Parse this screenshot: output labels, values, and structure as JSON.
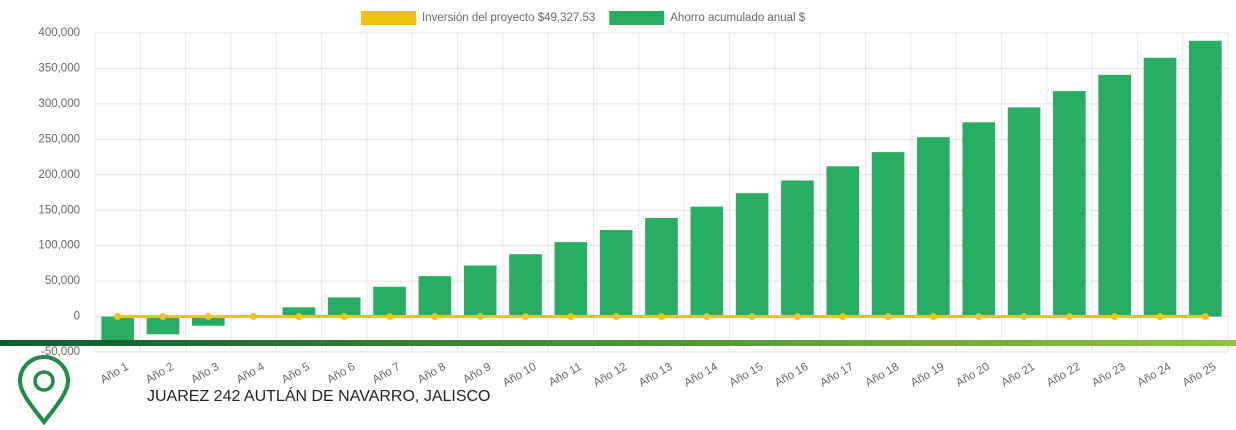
{
  "chart_data": {
    "type": "bar",
    "categories": [
      "Año 1",
      "Año 2",
      "Año 3",
      "Año 4",
      "Año 5",
      "Año 6",
      "Año 7",
      "Año 8",
      "Año 9",
      "Año 10",
      "Año 11",
      "Año 12",
      "Año 13",
      "Año 14",
      "Año 15",
      "Año 16",
      "Año 17",
      "Año 18",
      "Año 19",
      "Año 20",
      "Año 21",
      "Año 22",
      "Año 23",
      "Año 24",
      "Año 25"
    ],
    "series": [
      {
        "name": "Inversión del proyecto $49,327.53",
        "color": "#f1c40f",
        "type": "line",
        "values": [
          0,
          0,
          0,
          0,
          0,
          0,
          0,
          0,
          0,
          0,
          0,
          0,
          0,
          0,
          0,
          0,
          0,
          0,
          0,
          0,
          0,
          0,
          0,
          0,
          0
        ]
      },
      {
        "name": "Ahorro acumulado anual $",
        "color": "#27ae60",
        "type": "bar",
        "values": [
          -37000,
          -25000,
          -13000,
          0,
          13000,
          27000,
          42000,
          57000,
          72000,
          88000,
          105000,
          122000,
          139000,
          155000,
          174000,
          192000,
          212000,
          232000,
          253000,
          274000,
          295000,
          318000,
          341000,
          365000,
          389000
        ]
      }
    ],
    "ylim": [
      -50000,
      400000
    ],
    "yticks": [
      {
        "value": -50000,
        "label": "-50,000"
      },
      0,
      {
        "value": 50000,
        "label": "50,000"
      },
      {
        "value": 100000,
        "label": "100,000"
      },
      {
        "value": 150000,
        "label": "150,000"
      },
      {
        "value": 200000,
        "label": "200,000"
      },
      {
        "value": 250000,
        "label": "250,000"
      },
      {
        "value": 300000,
        "label": "300,000"
      },
      {
        "value": 350000,
        "label": "350,000"
      },
      {
        "value": 400000,
        "label": "400,000"
      }
    ],
    "grid": true
  },
  "footer": {
    "address": "JUAREZ 242 AUTLÁN DE NAVARRO, JALISCO"
  }
}
